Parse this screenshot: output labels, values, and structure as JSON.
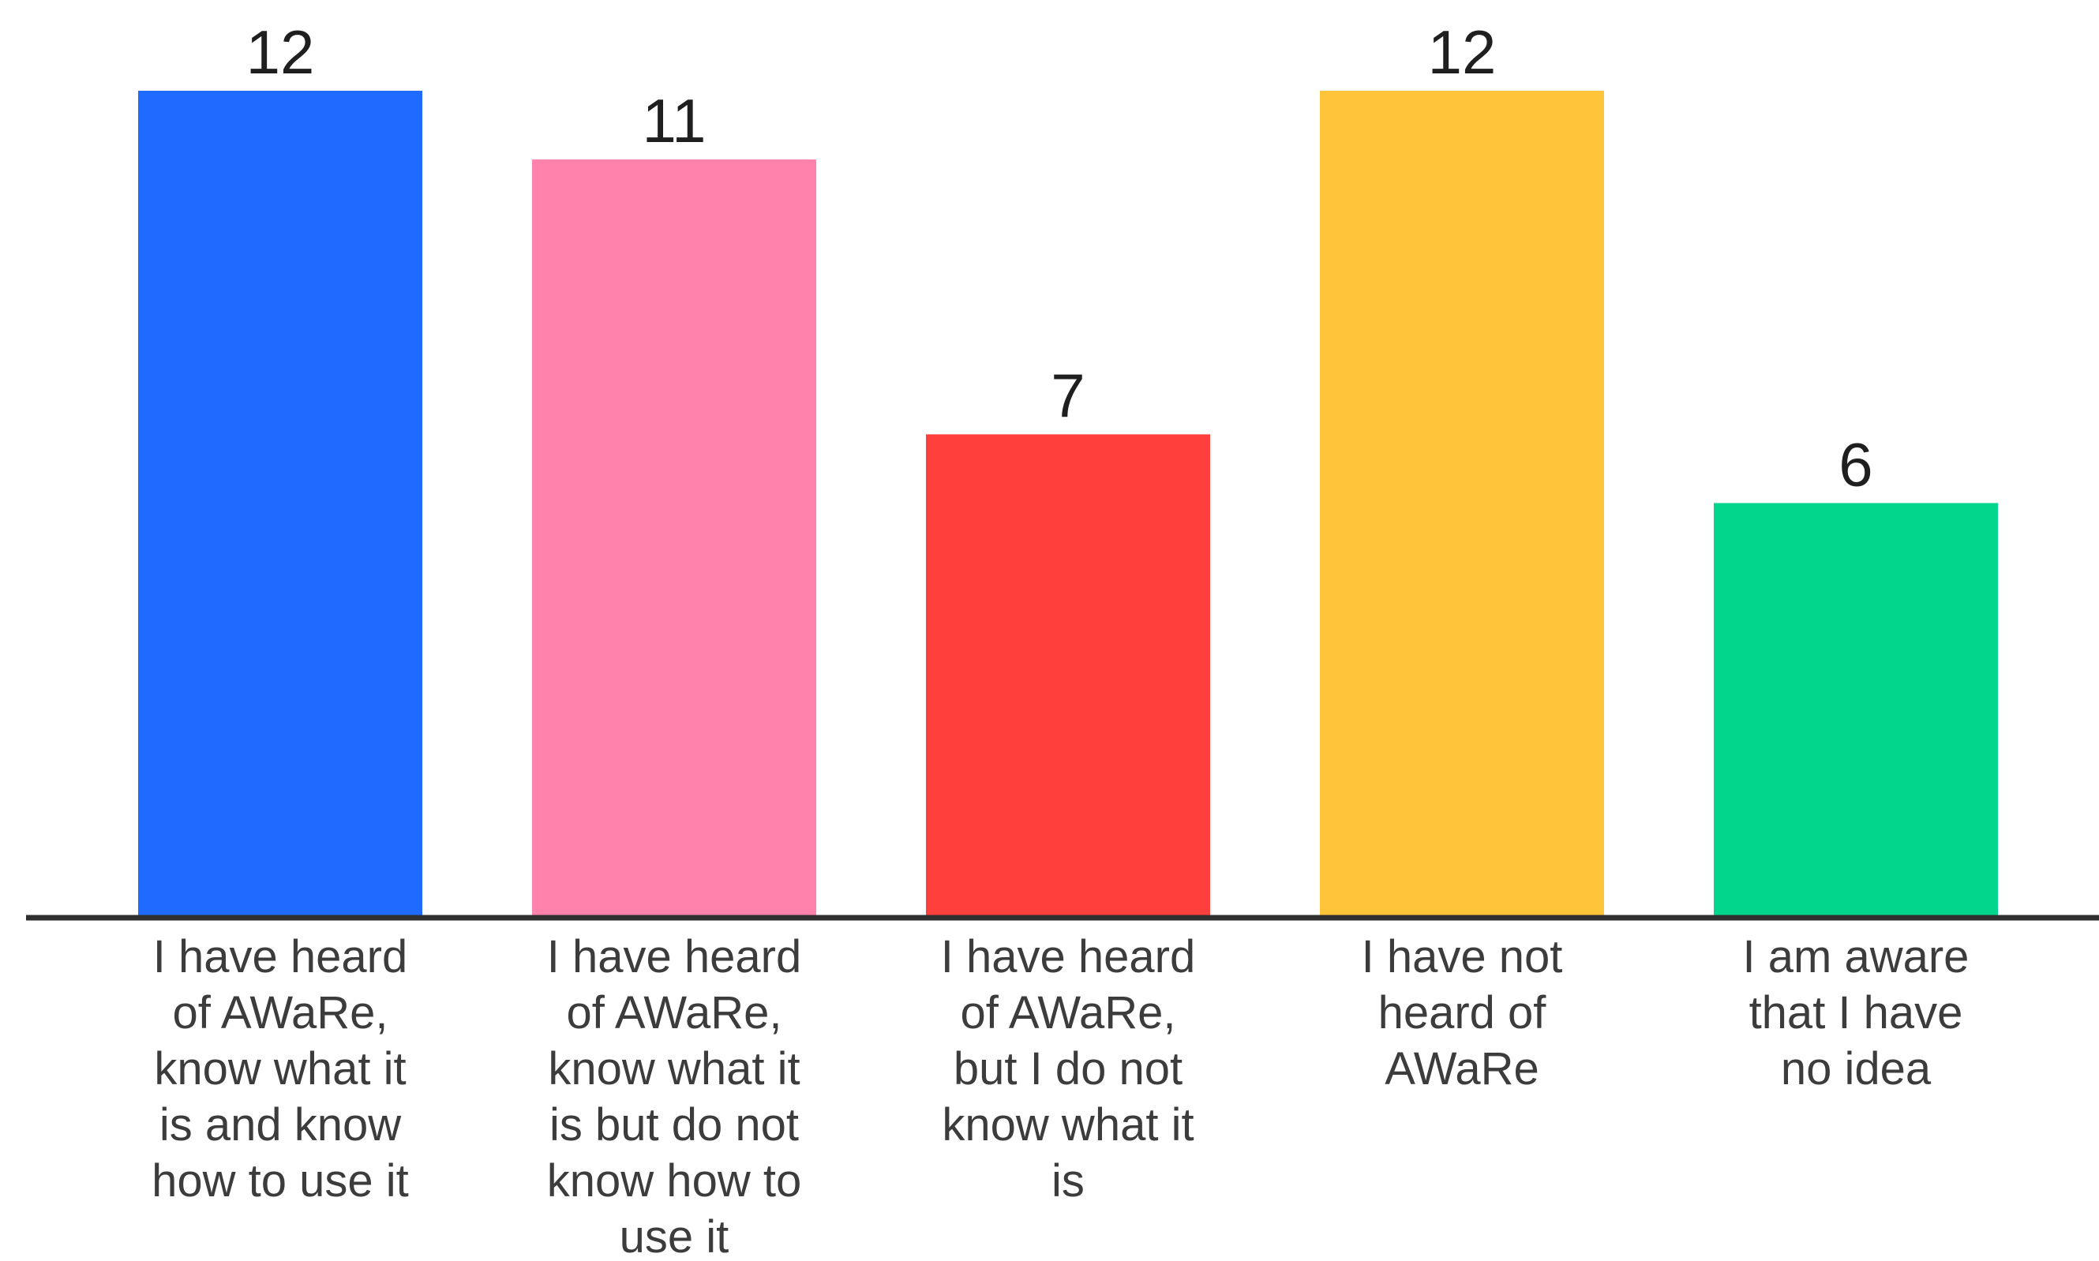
{
  "chart_data": {
    "type": "bar",
    "title": "",
    "xlabel": "",
    "ylabel": "",
    "ylim": [
      0,
      12
    ],
    "grid": false,
    "legend": "none",
    "categories": [
      [
        "I have heard",
        "of AWaRe,",
        "know what it",
        "is and know",
        "how to use it"
      ],
      [
        "I have heard",
        "of AWaRe,",
        "know what it",
        "is but do not",
        "know how to",
        "use it"
      ],
      [
        "I have heard",
        "of AWaRe,",
        "but I do not",
        "know what it",
        "is"
      ],
      [
        "I have not",
        "heard of",
        "AWaRe"
      ],
      [
        "I am aware",
        "that I have",
        "no idea"
      ]
    ],
    "values": [
      12,
      11,
      7,
      12,
      6
    ],
    "colors": [
      "#1f6bff",
      "#ff82ad",
      "#ff3f3c",
      "#fec43a",
      "#02d68c"
    ],
    "axis_color": "#2f2f2f"
  }
}
